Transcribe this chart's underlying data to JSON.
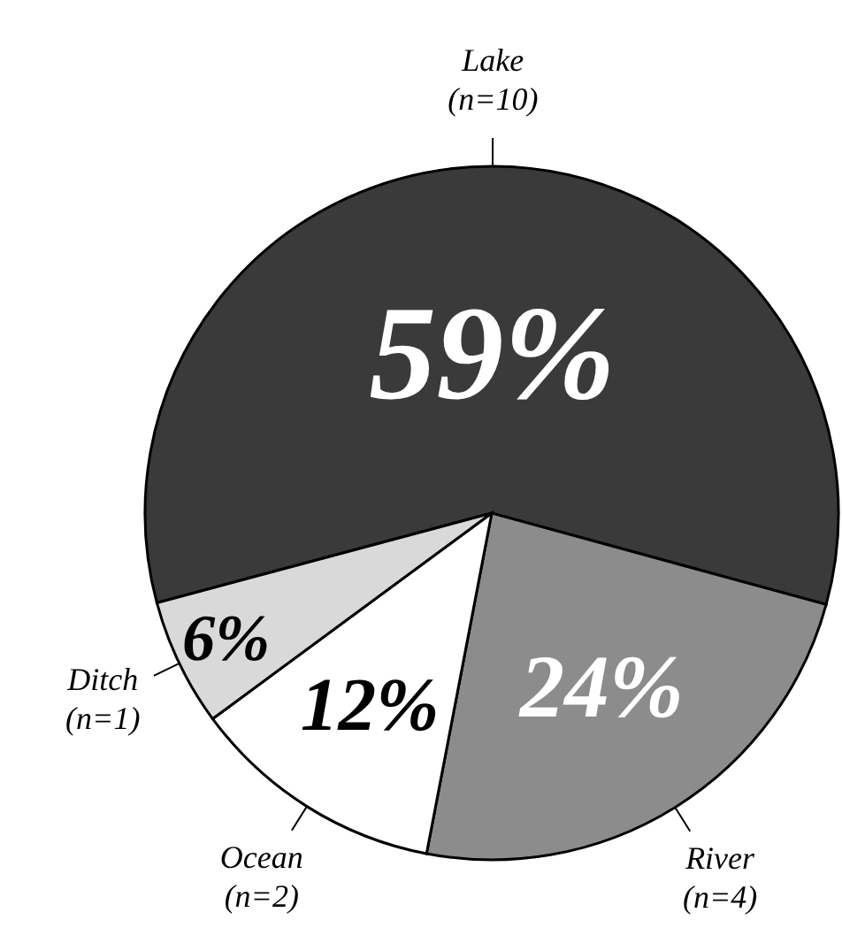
{
  "chart_data": {
    "type": "pie",
    "categories": [
      "Lake\n(n=10)",
      "River\n(n=4)",
      "Ocean\n(n=2)",
      "Ditch\n(n=1)"
    ],
    "values": [
      59,
      24,
      12,
      6
    ],
    "colors": [
      "#3a3a3a",
      "#8c8c8c",
      "#ffffff",
      "#d9d9d9"
    ],
    "value_labels": [
      "59%",
      "24%",
      "12%",
      "6%"
    ]
  }
}
